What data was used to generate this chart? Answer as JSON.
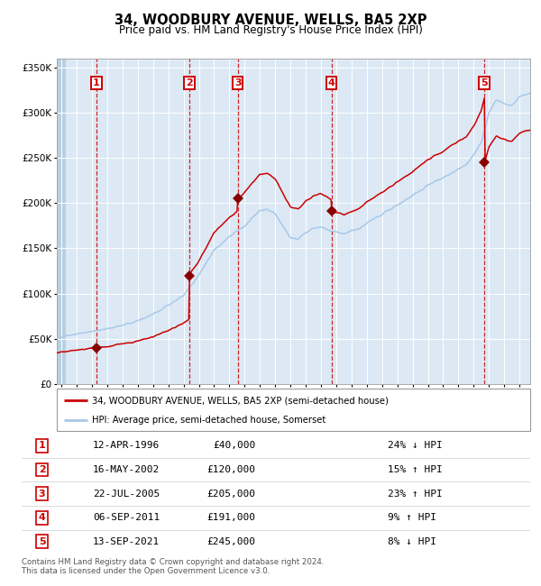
{
  "title": "34, WOODBURY AVENUE, WELLS, BA5 2XP",
  "subtitle": "Price paid vs. HM Land Registry's House Price Index (HPI)",
  "legend_label_red": "34, WOODBURY AVENUE, WELLS, BA5 2XP (semi-detached house)",
  "legend_label_blue": "HPI: Average price, semi-detached house, Somerset",
  "footer": "Contains HM Land Registry data © Crown copyright and database right 2024.\nThis data is licensed under the Open Government Licence v3.0.",
  "sales": [
    {
      "num": 1,
      "date": "12-APR-1996",
      "year": 1996.28,
      "price": 40000,
      "pct": "24%",
      "dir": "↓"
    },
    {
      "num": 2,
      "date": "16-MAY-2002",
      "year": 2002.37,
      "price": 120000,
      "pct": "15%",
      "dir": "↑"
    },
    {
      "num": 3,
      "date": "22-JUL-2005",
      "year": 2005.55,
      "price": 205000,
      "pct": "23%",
      "dir": "↑"
    },
    {
      "num": 4,
      "date": "06-SEP-2011",
      "year": 2011.68,
      "price": 191000,
      "pct": "9%",
      "dir": "↑"
    },
    {
      "num": 5,
      "date": "13-SEP-2021",
      "year": 2021.7,
      "price": 245000,
      "pct": "8%",
      "dir": "↓"
    }
  ],
  "ylim": [
    0,
    360000
  ],
  "xlim_start": 1993.7,
  "xlim_end": 2024.7,
  "plot_bg_color": "#dce9f5",
  "red_line_color": "#cc0000",
  "blue_line_color": "#a8c8e8",
  "sale_marker_color": "#880000",
  "dashed_vline_color": "#cc0000",
  "grid_color": "#ffffff",
  "box_border_color": "#cc0000",
  "box_text_color": "#cc0000"
}
